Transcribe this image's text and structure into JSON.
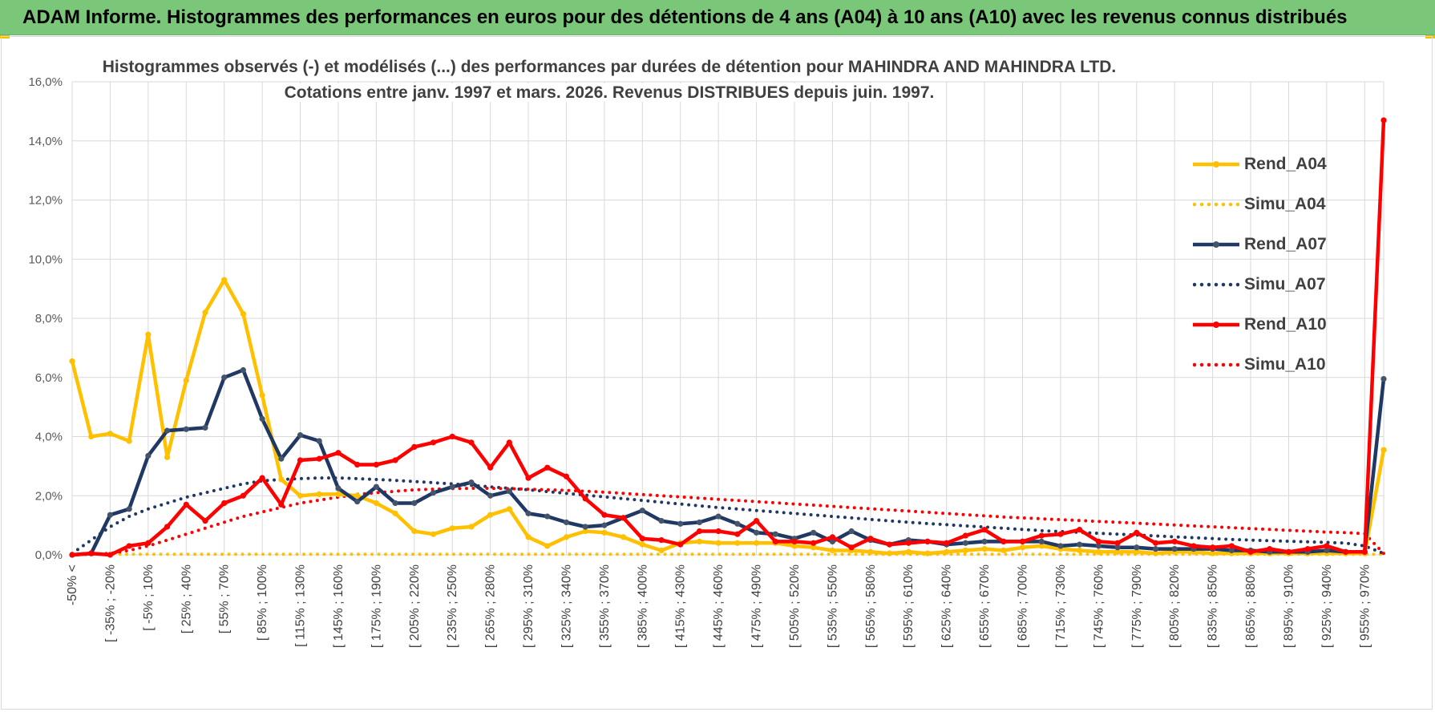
{
  "banner": {
    "title": "ADAM Informe. Histogrammes des performances en euros pour des détentions de 4 ans (A04) à 10 ans (A10) avec les revenus connus distribués"
  },
  "colors": {
    "banner_bg": "#7bc77a",
    "a04": "#ffc000",
    "a07": "#1f3864",
    "a10": "#ff0000",
    "grid": "#d9d9d9"
  },
  "chart_data": {
    "type": "line",
    "title_line1": "Histogrammes observés (-) et modélisés (...) des performances par durées de détention pour MAHINDRA AND MAHINDRA LTD.",
    "title_line2": "Cotations entre janv. 1997 et mars. 2026.  Revenus DISTRIBUES depuis juin. 1997.",
    "ylim": [
      0,
      16
    ],
    "yticks": [
      0,
      2,
      4,
      6,
      8,
      10,
      12,
      14,
      16
    ],
    "ytick_labels": [
      "0,0%",
      "2,0%",
      "4,0%",
      "6,0%",
      "8,0%",
      "10,0%",
      "12,0%",
      "14,0%",
      "16,0%"
    ],
    "n_points": 70,
    "xtick_labels": [
      {
        "index": 0,
        "label": "-50% <"
      },
      {
        "index": 2,
        "label": "[ -35% ; -20%"
      },
      {
        "index": 4,
        "label": "[ -5% ; 10%"
      },
      {
        "index": 6,
        "label": "[ 25% ; 40%"
      },
      {
        "index": 8,
        "label": "[ 55% ; 70%"
      },
      {
        "index": 10,
        "label": "[ 85% ; 100%"
      },
      {
        "index": 12,
        "label": "[ 115% ; 130%"
      },
      {
        "index": 14,
        "label": "[ 145% ; 160%"
      },
      {
        "index": 16,
        "label": "[ 175% ; 190%"
      },
      {
        "index": 18,
        "label": "[ 205% ; 220%"
      },
      {
        "index": 20,
        "label": "[ 235% ; 250%"
      },
      {
        "index": 22,
        "label": "[ 265% ; 280%"
      },
      {
        "index": 24,
        "label": "[ 295% ; 310%"
      },
      {
        "index": 26,
        "label": "[ 325% ; 340%"
      },
      {
        "index": 28,
        "label": "[ 355% ; 370%"
      },
      {
        "index": 30,
        "label": "[ 385% ; 400%"
      },
      {
        "index": 32,
        "label": "[ 415% ; 430%"
      },
      {
        "index": 34,
        "label": "[ 445% ; 460%"
      },
      {
        "index": 36,
        "label": "[ 475% ; 490%"
      },
      {
        "index": 38,
        "label": "[ 505% ; 520%"
      },
      {
        "index": 40,
        "label": "[ 535% ; 550%"
      },
      {
        "index": 42,
        "label": "[ 565% ; 580%"
      },
      {
        "index": 44,
        "label": "[ 595% ; 610%"
      },
      {
        "index": 46,
        "label": "[ 625% ; 640%"
      },
      {
        "index": 48,
        "label": "[ 655% ; 670%"
      },
      {
        "index": 50,
        "label": "[ 685% ; 700%"
      },
      {
        "index": 52,
        "label": "[ 715% ; 730%"
      },
      {
        "index": 54,
        "label": "[ 745% ; 760%"
      },
      {
        "index": 56,
        "label": "[ 775% ; 790%"
      },
      {
        "index": 58,
        "label": "[ 805% ; 820%"
      },
      {
        "index": 60,
        "label": "[ 835% ; 850%"
      },
      {
        "index": 62,
        "label": "[ 865% ; 880%"
      },
      {
        "index": 64,
        "label": "[ 895% ; 910%"
      },
      {
        "index": 66,
        "label": "[ 925% ; 940%"
      },
      {
        "index": 68,
        "label": "[ 955% ; 970%"
      }
    ],
    "legend": [
      "Rend_A04",
      "Simu_A04",
      "Rend_A07",
      "Simu_A07",
      "Rend_A10",
      "Simu_A10"
    ],
    "legend_position": "right",
    "series": [
      {
        "name": "Rend_A04",
        "style": "solid",
        "color": "#ffc000",
        "values": [
          6.55,
          4.0,
          4.1,
          3.85,
          7.45,
          3.3,
          5.9,
          8.2,
          9.3,
          8.15,
          5.4,
          2.55,
          2.0,
          2.05,
          2.05,
          2.0,
          1.75,
          1.4,
          0.8,
          0.7,
          0.9,
          0.95,
          1.35,
          1.55,
          0.6,
          0.3,
          0.6,
          0.8,
          0.75,
          0.6,
          0.35,
          0.15,
          0.4,
          0.45,
          0.4,
          0.4,
          0.4,
          0.4,
          0.3,
          0.25,
          0.15,
          0.15,
          0.1,
          0.05,
          0.1,
          0.05,
          0.1,
          0.15,
          0.2,
          0.15,
          0.25,
          0.3,
          0.2,
          0.15,
          0.1,
          0.1,
          0.1,
          0.05,
          0.1,
          0.1,
          0.05,
          0.05,
          0.05,
          0.05,
          0.05,
          0.05,
          0.05,
          0.05,
          0.05,
          3.55
        ]
      },
      {
        "name": "Simu_A04",
        "style": "dotted",
        "color": "#ffc000",
        "values": [
          0.0,
          0.02,
          0.02,
          0.02,
          0.02,
          0.02,
          0.02,
          0.02,
          0.02,
          0.02,
          0.02,
          0.02,
          0.02,
          0.02,
          0.02,
          0.02,
          0.02,
          0.02,
          0.02,
          0.02,
          0.02,
          0.02,
          0.02,
          0.02,
          0.02,
          0.02,
          0.02,
          0.02,
          0.02,
          0.02,
          0.02,
          0.02,
          0.02,
          0.02,
          0.02,
          0.02,
          0.02,
          0.02,
          0.02,
          0.02,
          0.02,
          0.02,
          0.02,
          0.02,
          0.02,
          0.02,
          0.02,
          0.02,
          0.02,
          0.02,
          0.02,
          0.02,
          0.02,
          0.02,
          0.02,
          0.02,
          0.02,
          0.02,
          0.02,
          0.02,
          0.02,
          0.02,
          0.02,
          0.02,
          0.02,
          0.02,
          0.02,
          0.02,
          0.02,
          0.02
        ]
      },
      {
        "name": "Rend_A07",
        "style": "solid",
        "color": "#1f3864",
        "values": [
          0.0,
          0.05,
          1.35,
          1.55,
          3.35,
          4.2,
          4.25,
          4.3,
          6.0,
          6.25,
          4.6,
          3.25,
          4.05,
          3.85,
          2.25,
          1.8,
          2.3,
          1.75,
          1.75,
          2.1,
          2.3,
          2.45,
          2.0,
          2.15,
          1.4,
          1.3,
          1.1,
          0.95,
          1.0,
          1.25,
          1.5,
          1.15,
          1.05,
          1.1,
          1.3,
          1.05,
          0.75,
          0.7,
          0.55,
          0.75,
          0.45,
          0.8,
          0.5,
          0.35,
          0.5,
          0.45,
          0.35,
          0.4,
          0.45,
          0.45,
          0.45,
          0.45,
          0.3,
          0.35,
          0.3,
          0.25,
          0.25,
          0.2,
          0.2,
          0.2,
          0.2,
          0.15,
          0.15,
          0.1,
          0.1,
          0.1,
          0.15,
          0.1,
          0.1,
          5.95
        ]
      },
      {
        "name": "Simu_A07",
        "style": "dotted",
        "color": "#1f3864",
        "values": [
          0.05,
          0.5,
          0.95,
          1.3,
          1.55,
          1.75,
          1.95,
          2.1,
          2.25,
          2.4,
          2.5,
          2.55,
          2.58,
          2.6,
          2.6,
          2.58,
          2.55,
          2.52,
          2.48,
          2.44,
          2.4,
          2.35,
          2.3,
          2.25,
          2.2,
          2.14,
          2.08,
          2.02,
          1.96,
          1.9,
          1.84,
          1.78,
          1.72,
          1.66,
          1.6,
          1.55,
          1.5,
          1.45,
          1.4,
          1.35,
          1.3,
          1.25,
          1.2,
          1.15,
          1.1,
          1.06,
          1.02,
          0.98,
          0.94,
          0.9,
          0.86,
          0.82,
          0.79,
          0.76,
          0.73,
          0.7,
          0.67,
          0.64,
          0.61,
          0.58,
          0.55,
          0.52,
          0.5,
          0.48,
          0.46,
          0.44,
          0.42,
          0.4,
          0.3,
          0.05
        ]
      },
      {
        "name": "Rend_A10",
        "style": "solid",
        "color": "#ff0000",
        "values": [
          0.0,
          0.05,
          0.0,
          0.3,
          0.4,
          0.95,
          1.7,
          1.15,
          1.75,
          2.0,
          2.6,
          1.7,
          3.2,
          3.25,
          3.45,
          3.05,
          3.05,
          3.2,
          3.65,
          3.8,
          4.0,
          3.8,
          2.95,
          3.8,
          2.6,
          2.95,
          2.65,
          1.9,
          1.35,
          1.25,
          0.55,
          0.5,
          0.35,
          0.8,
          0.8,
          0.7,
          1.15,
          0.45,
          0.45,
          0.4,
          0.6,
          0.25,
          0.55,
          0.35,
          0.4,
          0.45,
          0.4,
          0.65,
          0.85,
          0.45,
          0.45,
          0.65,
          0.7,
          0.85,
          0.45,
          0.4,
          0.75,
          0.4,
          0.45,
          0.3,
          0.25,
          0.3,
          0.1,
          0.2,
          0.1,
          0.2,
          0.3,
          0.1,
          0.1,
          14.7
        ]
      },
      {
        "name": "Simu_A10",
        "style": "dotted",
        "color": "#ff0000",
        "values": [
          0.0,
          0.02,
          0.05,
          0.15,
          0.3,
          0.5,
          0.7,
          0.9,
          1.1,
          1.3,
          1.45,
          1.6,
          1.75,
          1.85,
          1.95,
          2.05,
          2.1,
          2.15,
          2.2,
          2.22,
          2.24,
          2.25,
          2.25,
          2.24,
          2.22,
          2.2,
          2.18,
          2.15,
          2.12,
          2.08,
          2.04,
          2.0,
          1.96,
          1.92,
          1.88,
          1.84,
          1.8,
          1.76,
          1.72,
          1.68,
          1.64,
          1.6,
          1.56,
          1.52,
          1.48,
          1.44,
          1.4,
          1.36,
          1.32,
          1.28,
          1.25,
          1.22,
          1.19,
          1.16,
          1.13,
          1.1,
          1.07,
          1.04,
          1.01,
          0.98,
          0.95,
          0.92,
          0.89,
          0.86,
          0.83,
          0.8,
          0.77,
          0.75,
          0.72,
          0.05
        ]
      }
    ]
  }
}
